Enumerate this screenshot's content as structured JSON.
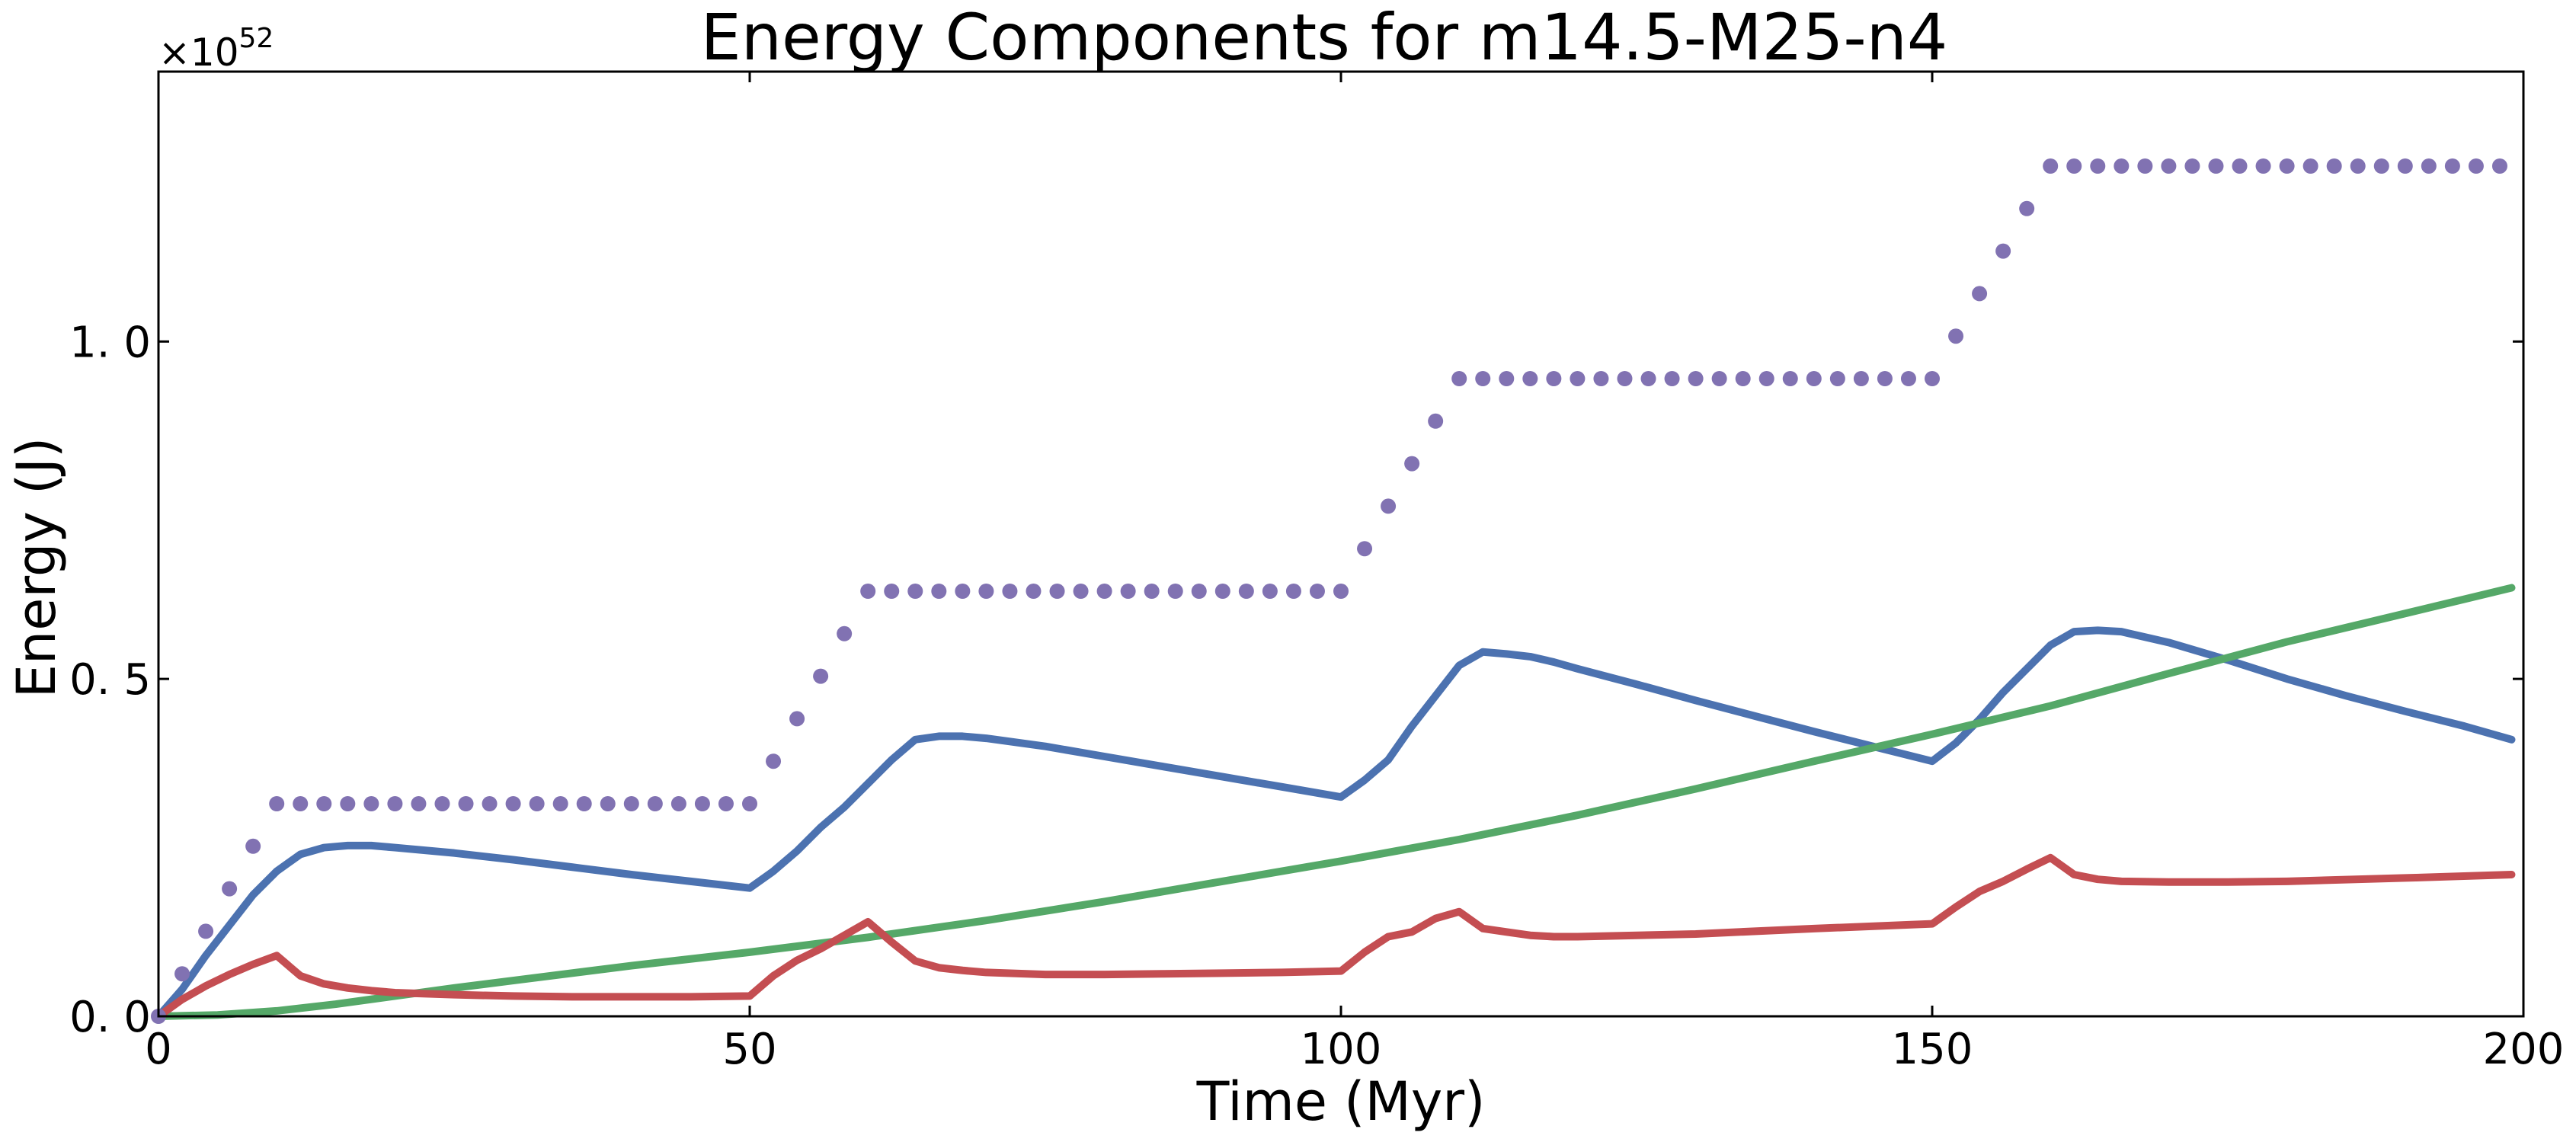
{
  "chart_data": {
    "type": "line",
    "title": "Energy Components for m14.5-M25-n4",
    "xlabel": "Time (Myr)",
    "ylabel": "Energy (J)",
    "xlim": [
      0,
      200
    ],
    "ylim": [
      0,
      1.4
    ],
    "y_multiplier": {
      "base": "×10",
      "exponent": "52"
    },
    "x_ticks": [
      {
        "value": 0,
        "label": "0"
      },
      {
        "value": 50,
        "label": "50"
      },
      {
        "value": 100,
        "label": "100"
      },
      {
        "value": 150,
        "label": "150"
      },
      {
        "value": 200,
        "label": "200"
      }
    ],
    "y_ticks": [
      {
        "value": 0,
        "label": "0. 0"
      },
      {
        "value": 0.5,
        "label": "0. 5"
      },
      {
        "value": 1.0,
        "label": "1. 0"
      }
    ],
    "grid": false,
    "legend": null,
    "series": [
      {
        "style": "line",
        "color": "#4c72b0",
        "x": [
          0,
          2,
          4,
          6,
          8,
          10,
          12,
          14,
          16,
          18,
          20,
          25,
          30,
          35,
          40,
          45,
          50,
          52,
          54,
          56,
          58,
          60,
          62,
          64,
          66,
          68,
          70,
          75,
          80,
          85,
          90,
          95,
          100,
          102,
          104,
          106,
          108,
          110,
          112,
          114,
          116,
          118,
          120,
          125,
          130,
          135,
          140,
          145,
          150,
          152,
          154,
          156,
          158,
          160,
          162,
          164,
          166,
          168,
          170,
          175,
          180,
          185,
          190,
          195,
          199
        ],
        "y": [
          0.0,
          0.04,
          0.09,
          0.135,
          0.18,
          0.215,
          0.24,
          0.25,
          0.253,
          0.253,
          0.25,
          0.242,
          0.232,
          0.221,
          0.21,
          0.2,
          0.19,
          0.215,
          0.245,
          0.28,
          0.31,
          0.345,
          0.38,
          0.41,
          0.415,
          0.415,
          0.412,
          0.4,
          0.385,
          0.37,
          0.355,
          0.34,
          0.325,
          0.35,
          0.38,
          0.43,
          0.475,
          0.52,
          0.54,
          0.537,
          0.533,
          0.525,
          0.515,
          0.492,
          0.468,
          0.445,
          0.422,
          0.4,
          0.378,
          0.405,
          0.44,
          0.48,
          0.515,
          0.55,
          0.57,
          0.572,
          0.57,
          0.562,
          0.554,
          0.528,
          0.5,
          0.475,
          0.452,
          0.43,
          0.41
        ]
      },
      {
        "style": "line",
        "color": "#55a868",
        "x": [
          0,
          5,
          10,
          15,
          20,
          25,
          30,
          40,
          50,
          60,
          70,
          80,
          90,
          100,
          110,
          120,
          130,
          140,
          150,
          160,
          170,
          180,
          190,
          199
        ],
        "y": [
          0.0,
          0.002,
          0.008,
          0.018,
          0.03,
          0.042,
          0.053,
          0.075,
          0.095,
          0.117,
          0.142,
          0.17,
          0.2,
          0.23,
          0.262,
          0.298,
          0.337,
          0.378,
          0.418,
          0.46,
          0.508,
          0.555,
          0.597,
          0.635
        ]
      },
      {
        "style": "line",
        "color": "#c44e52",
        "x": [
          0,
          2,
          4,
          6,
          8,
          10,
          12,
          14,
          16,
          18,
          20,
          25,
          30,
          35,
          40,
          45,
          50,
          52,
          54,
          56,
          58,
          60,
          62,
          64,
          66,
          68,
          70,
          75,
          80,
          85,
          90,
          95,
          100,
          102,
          104,
          106,
          108,
          110,
          112,
          114,
          116,
          118,
          120,
          130,
          140,
          150,
          152,
          154,
          156,
          158,
          160,
          162,
          164,
          166,
          170,
          175,
          180,
          190,
          199
        ],
        "y": [
          0.0,
          0.025,
          0.045,
          0.062,
          0.077,
          0.09,
          0.06,
          0.048,
          0.042,
          0.038,
          0.035,
          0.032,
          0.03,
          0.029,
          0.029,
          0.029,
          0.03,
          0.06,
          0.083,
          0.1,
          0.12,
          0.14,
          0.11,
          0.082,
          0.072,
          0.068,
          0.065,
          0.062,
          0.062,
          0.063,
          0.064,
          0.065,
          0.067,
          0.095,
          0.118,
          0.125,
          0.145,
          0.155,
          0.13,
          0.125,
          0.12,
          0.118,
          0.118,
          0.122,
          0.13,
          0.137,
          0.162,
          0.185,
          0.2,
          0.218,
          0.235,
          0.21,
          0.203,
          0.2,
          0.199,
          0.199,
          0.2,
          0.205,
          0.21
        ]
      },
      {
        "style": "dots",
        "color": "#8172b2",
        "x": [
          0,
          2,
          4,
          6,
          8,
          10,
          12,
          14,
          16,
          18,
          20,
          22,
          24,
          26,
          28,
          30,
          32,
          34,
          36,
          38,
          40,
          42,
          44,
          46,
          48,
          50,
          52,
          54,
          56,
          58,
          60,
          62,
          64,
          66,
          68,
          70,
          72,
          74,
          76,
          78,
          80,
          82,
          84,
          86,
          88,
          90,
          92,
          94,
          96,
          98,
          100,
          102,
          104,
          106,
          108,
          110,
          112,
          114,
          116,
          118,
          120,
          122,
          124,
          126,
          128,
          130,
          132,
          134,
          136,
          138,
          140,
          142,
          144,
          146,
          148,
          150,
          152,
          154,
          156,
          158,
          160,
          162,
          164,
          166,
          168,
          170,
          172,
          174,
          176,
          178,
          180,
          182,
          184,
          186,
          188,
          190,
          192,
          194,
          196,
          198
        ],
        "y": [
          0.0,
          0.063,
          0.126,
          0.189,
          0.252,
          0.315,
          0.315,
          0.315,
          0.315,
          0.315,
          0.315,
          0.315,
          0.315,
          0.315,
          0.315,
          0.315,
          0.315,
          0.315,
          0.315,
          0.315,
          0.315,
          0.315,
          0.315,
          0.315,
          0.315,
          0.315,
          0.378,
          0.441,
          0.504,
          0.567,
          0.63,
          0.63,
          0.63,
          0.63,
          0.63,
          0.63,
          0.63,
          0.63,
          0.63,
          0.63,
          0.63,
          0.63,
          0.63,
          0.63,
          0.63,
          0.63,
          0.63,
          0.63,
          0.63,
          0.63,
          0.63,
          0.693,
          0.756,
          0.819,
          0.882,
          0.945,
          0.945,
          0.945,
          0.945,
          0.945,
          0.945,
          0.945,
          0.945,
          0.945,
          0.945,
          0.945,
          0.945,
          0.945,
          0.945,
          0.945,
          0.945,
          0.945,
          0.945,
          0.945,
          0.945,
          0.945,
          1.008,
          1.071,
          1.134,
          1.197,
          1.26,
          1.26,
          1.26,
          1.26,
          1.26,
          1.26,
          1.26,
          1.26,
          1.26,
          1.26,
          1.26,
          1.26,
          1.26,
          1.26,
          1.26,
          1.26,
          1.26,
          1.26,
          1.26,
          1.26
        ]
      }
    ]
  }
}
